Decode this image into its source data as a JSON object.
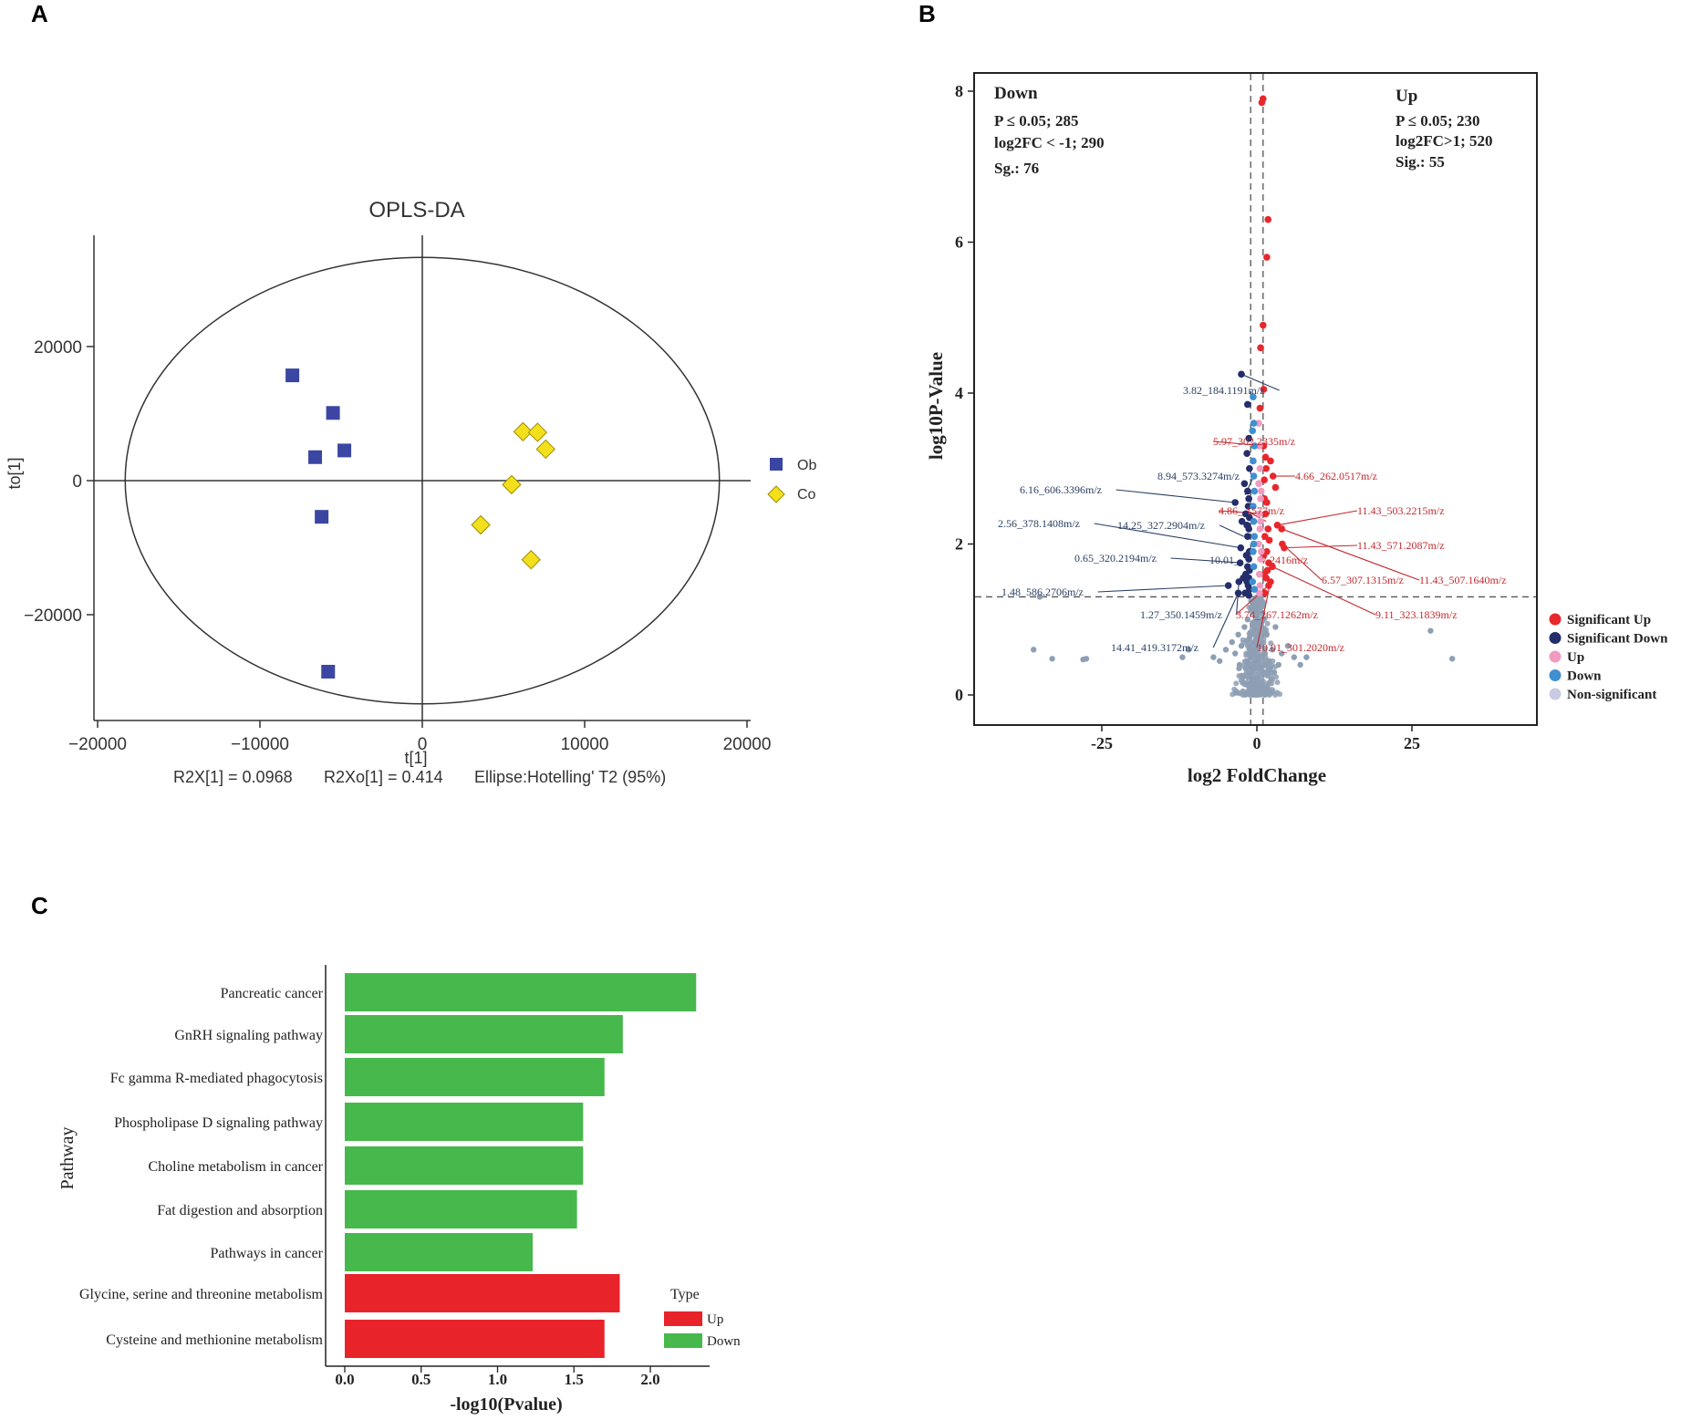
{
  "panel_labels": [
    "A",
    "B",
    "C"
  ],
  "colors": {
    "ob": "#3b46a3",
    "co": "#f3e01c",
    "sig_up": "#e8272d",
    "sig_down": "#252e6b",
    "up": "#f09bbf",
    "down": "#3f8fd1",
    "nonsig": "#8e9fb4",
    "bar_up": "#e8232a",
    "bar_down": "#47b84c",
    "label_up": "#c32a2f",
    "label_down": "#2a3f63"
  },
  "chart_data": [
    {
      "id": "A",
      "type": "scatter",
      "title": "OPLS-DA",
      "xlabel": "t[1]",
      "ylabel": "to[1]",
      "xlim": [
        -20000,
        20000
      ],
      "ylim": [
        -36000,
        36000
      ],
      "xticks": [
        -20000,
        -10000,
        0,
        10000,
        20000
      ],
      "xtick_labels": [
        "−20000",
        "−10000",
        "0",
        "10000",
        "20000"
      ],
      "yticks": [
        -20000,
        0,
        20000
      ],
      "ytick_labels": [
        "−20000",
        "0",
        "20000"
      ],
      "ellipse": {
        "rx": 18300,
        "ry": 33300
      },
      "ellipse_label": "Ellipse:Hotelling' T2 (95%)",
      "stats": [
        "R2X[1] = 0.0968",
        "R2Xo[1] = 0.414"
      ],
      "legend_position": "right",
      "series": [
        {
          "name": "Ob",
          "marker": "square",
          "points": [
            [
              -8000,
              15700
            ],
            [
              -5500,
              10100
            ],
            [
              -4800,
              4500
            ],
            [
              -6600,
              3500
            ],
            [
              -6200,
              -5400
            ],
            [
              -5800,
              -28500
            ]
          ]
        },
        {
          "name": "Co",
          "marker": "diamond",
          "points": [
            [
              6200,
              7300
            ],
            [
              7100,
              7200
            ],
            [
              7600,
              4700
            ],
            [
              5500,
              -600
            ],
            [
              3600,
              -6600
            ],
            [
              6700,
              -11800
            ]
          ]
        }
      ]
    },
    {
      "id": "B",
      "type": "scatter",
      "subtype": "volcano",
      "xlabel": "log2 FoldChange",
      "ylabel": "log10P-Value",
      "xlim": [
        -44,
        44
      ],
      "ylim": [
        -0.4,
        8.5
      ],
      "xticks": [
        -25,
        0,
        25
      ],
      "xtick_labels": [
        "-25",
        "0",
        "25"
      ],
      "yticks": [
        0,
        2,
        4,
        6,
        8
      ],
      "ytick_labels": [
        "0",
        "2",
        "4",
        "6",
        "8"
      ],
      "thresholds": {
        "x": [
          -1,
          1
        ],
        "y": 1.3
      },
      "annotation_down": {
        "title": "Down",
        "lines": [
          "P ≤ 0.05;  285",
          "log2FC < -1; 290",
          "Sg.: 76"
        ]
      },
      "annotation_up": {
        "title": "Up",
        "lines": [
          "P ≤ 0.05; 230",
          "log2FC>1; 520",
          "Sig.: 55"
        ]
      },
      "legend_position": "right",
      "legend": [
        "Significant Up",
        "Significant Down",
        "Up",
        "Down",
        "Non-significant"
      ],
      "series": [
        {
          "name": "Significant Up",
          "points": [
            [
              0.8,
              7.85
            ],
            [
              1.0,
              7.9
            ],
            [
              1.8,
              6.3
            ],
            [
              1.6,
              5.8
            ],
            [
              1.0,
              4.9
            ],
            [
              0.6,
              4.6
            ],
            [
              1.1,
              4.05
            ],
            [
              0.5,
              3.8
            ],
            [
              2.2,
              3.1
            ],
            [
              3.0,
              2.75
            ],
            [
              2.6,
              2.9
            ],
            [
              3.3,
              2.25
            ],
            [
              4.0,
              2.2
            ],
            [
              4.4,
              1.95
            ],
            [
              4.1,
              2.0
            ],
            [
              2.5,
              1.7
            ],
            [
              2.2,
              1.5
            ],
            [
              1.9,
              1.45
            ],
            [
              1.5,
              1.55
            ],
            [
              1.2,
              1.6
            ],
            [
              1.6,
              1.9
            ],
            [
              1.3,
              2.1
            ],
            [
              1.4,
              2.4
            ],
            [
              1.2,
              2.6
            ],
            [
              1.5,
              3.0
            ],
            [
              1.1,
              3.3
            ],
            [
              1.8,
              2.2
            ],
            [
              1.9,
              1.75
            ],
            [
              1.3,
              1.35
            ],
            [
              1.7,
              1.65
            ],
            [
              2.0,
              2.05
            ],
            [
              1.2,
              2.85
            ],
            [
              1.6,
              2.55
            ],
            [
              1.4,
              3.15
            ],
            [
              1.1,
              1.85
            ]
          ]
        },
        {
          "name": "Significant Down",
          "points": [
            [
              -2.5,
              4.25
            ],
            [
              -1.5,
              3.85
            ],
            [
              -1.3,
              3.4
            ],
            [
              -1.6,
              3.2
            ],
            [
              -1.2,
              3.0
            ],
            [
              -2.0,
              2.8
            ],
            [
              -1.5,
              2.7
            ],
            [
              -1.3,
              2.6
            ],
            [
              -3.5,
              2.55
            ],
            [
              -1.4,
              2.5
            ],
            [
              -1.8,
              2.4
            ],
            [
              -1.2,
              2.35
            ],
            [
              -2.4,
              2.3
            ],
            [
              -1.6,
              2.25
            ],
            [
              -1.3,
              2.2
            ],
            [
              -1.5,
              2.1
            ],
            [
              -2.6,
              1.95
            ],
            [
              -1.2,
              1.9
            ],
            [
              -1.7,
              1.85
            ],
            [
              -1.3,
              1.8
            ],
            [
              -1.5,
              1.7
            ],
            [
              -1.2,
              1.65
            ],
            [
              -2.7,
              1.75
            ],
            [
              -1.8,
              1.6
            ],
            [
              -1.3,
              1.55
            ],
            [
              -2.2,
              1.55
            ],
            [
              -1.6,
              1.5
            ],
            [
              -2.9,
              1.5
            ],
            [
              -1.4,
              1.45
            ],
            [
              -1.2,
              1.4
            ],
            [
              -4.6,
              1.45
            ],
            [
              -1.9,
              1.35
            ],
            [
              -1.3,
              1.32
            ],
            [
              -3.0,
              1.35
            ]
          ]
        },
        {
          "name": "Up",
          "points": [
            [
              0.4,
              3.3
            ],
            [
              0.5,
              3.0
            ],
            [
              0.3,
              2.8
            ],
            [
              0.6,
              2.6
            ],
            [
              0.4,
              2.4
            ],
            [
              0.5,
              2.2
            ],
            [
              0.3,
              2.0
            ],
            [
              0.6,
              1.8
            ],
            [
              0.4,
              1.6
            ],
            [
              0.5,
              1.45
            ],
            [
              0.3,
              3.6
            ],
            [
              0.7,
              1.9
            ],
            [
              0.6,
              2.3
            ],
            [
              0.4,
              1.35
            ],
            [
              0.7,
              2.7
            ]
          ]
        },
        {
          "name": "Down",
          "points": [
            [
              -0.6,
              3.95
            ],
            [
              -0.5,
              3.6
            ],
            [
              -0.7,
              3.5
            ],
            [
              -0.4,
              3.3
            ],
            [
              -0.6,
              3.1
            ],
            [
              -0.5,
              2.9
            ],
            [
              -0.4,
              2.7
            ],
            [
              -0.6,
              2.5
            ],
            [
              -0.5,
              2.3
            ],
            [
              -0.4,
              2.1
            ],
            [
              -0.6,
              1.9
            ],
            [
              -0.5,
              1.7
            ],
            [
              -0.7,
              1.5
            ],
            [
              -0.4,
              1.4
            ],
            [
              -0.5,
              2.0
            ]
          ]
        },
        {
          "name": "Non-significant",
          "points": [
            [
              -36,
              0.6
            ],
            [
              -33,
              0.48
            ],
            [
              -28,
              0.47
            ],
            [
              -27.5,
              0.48
            ],
            [
              -35,
              1.3
            ],
            [
              -11,
              0.6
            ],
            [
              -12,
              0.5
            ],
            [
              -7,
              0.5
            ],
            [
              -6,
              0.45
            ],
            [
              -5,
              0.6
            ],
            [
              -4,
              0.7
            ],
            [
              -3.5,
              0.55
            ],
            [
              -3,
              0.8
            ],
            [
              -2.5,
              0.65
            ],
            [
              -2,
              0.9
            ],
            [
              -1.5,
              1.0
            ],
            [
              -1.2,
              0.75
            ],
            [
              -1,
              0.5
            ],
            [
              -0.8,
              0.3
            ],
            [
              -0.6,
              0.6
            ],
            [
              -0.4,
              0.2
            ],
            [
              -0.2,
              0.8
            ],
            [
              0,
              0.1
            ],
            [
              0.2,
              0.5
            ],
            [
              0.4,
              0.9
            ],
            [
              0.6,
              0.35
            ],
            [
              0.8,
              0.7
            ],
            [
              1,
              1.0
            ],
            [
              1.3,
              0.55
            ],
            [
              1.6,
              0.8
            ],
            [
              2,
              0.45
            ],
            [
              2.5,
              0.6
            ],
            [
              3,
              0.9
            ],
            [
              3.5,
              0.4
            ],
            [
              4,
              0.55
            ],
            [
              5,
              0.65
            ],
            [
              6,
              0.5
            ],
            [
              7,
              0.4
            ],
            [
              8,
              0.5
            ],
            [
              28,
              0.85
            ],
            [
              31.5,
              0.48
            ],
            [
              -1.8,
              0.35
            ],
            [
              1.8,
              0.3
            ],
            [
              -0.9,
              1.15
            ],
            [
              0.9,
              1.2
            ],
            [
              -1.1,
              0.15
            ],
            [
              1.1,
              0.1
            ],
            [
              -0.3,
              0.05
            ],
            [
              0.3,
              0.02
            ],
            [
              -2.2,
              0.25
            ],
            [
              2.3,
              0.2
            ],
            [
              -0.5,
              1.25
            ],
            [
              0.5,
              1.2
            ],
            [
              -1.4,
              0.45
            ],
            [
              1.4,
              0.4
            ],
            [
              -0.7,
              0.95
            ],
            [
              0.7,
              0.95
            ],
            [
              -2.8,
              0.4
            ],
            [
              2.8,
              0.3
            ],
            [
              -0.1,
              0.4
            ]
          ]
        }
      ],
      "annotations_down": [
        {
          "text": "3.82_184.1191m/z",
          "x": -2.5,
          "y": 4.25
        },
        {
          "text": "8.94_573.3274m/z",
          "x": -1.9,
          "y": 2.65
        },
        {
          "text": "6.16_606.3396m/z",
          "x": -3.5,
          "y": 2.55
        },
        {
          "text": "2.56_378.1408m/z",
          "x": -2.6,
          "y": 1.95
        },
        {
          "text": "14.25_327.2904m/z",
          "x": -2.1,
          "y": 2.1
        },
        {
          "text": "0.65_320.2194m/z",
          "x": -2.4,
          "y": 1.75
        },
        {
          "text": "10.01_",
          "x": -1.8,
          "y": 1.8
        },
        {
          "text": "1.48_586.2706m/z",
          "x": -4.6,
          "y": 1.45
        },
        {
          "text": "1.27_350.1459m/z",
          "x": -2.9,
          "y": 1.5
        },
        {
          "text": "14.41_419.3172m/z",
          "x": -3.0,
          "y": 1.35
        }
      ],
      "annotations_up": [
        {
          "text": "5.97_302.2335m/z",
          "x": 1.2,
          "y": 3.3
        },
        {
          "text": "4.66_262.0517m/z",
          "x": 2.6,
          "y": 2.9
        },
        {
          "text": "4.86_",
          "x": 1.4,
          "y": 2.4
        },
        {
          "text": "1577m/z",
          "x": 1.5,
          "y": 2.3
        },
        {
          "text": "11.43_503.2215m/z",
          "x": 3.3,
          "y": 2.25
        },
        {
          "text": "11.43_571.2087m/z",
          "x": 4.4,
          "y": 1.95
        },
        {
          "text": "7.2416m/z",
          "x": 1.2,
          "y": 1.75
        },
        {
          "text": "6.57_307.1315m/z",
          "x": 4.1,
          "y": 2.0
        },
        {
          "text": "11.43_507.1640m/z",
          "x": 4.0,
          "y": 2.2
        },
        {
          "text": "9.11_323.1839m/z",
          "x": 2.5,
          "y": 1.7
        },
        {
          "text": "3.74_267.1262m/z",
          "x": 1.9,
          "y": 1.45
        },
        {
          "text": "10.01_301.2020m/z",
          "x": 2.2,
          "y": 1.5
        }
      ]
    },
    {
      "id": "C",
      "type": "bar",
      "orientation": "horizontal",
      "xlabel": "-log10(Pvalue)",
      "ylabel": "Pathway",
      "xlim": [
        0,
        2.4
      ],
      "xticks": [
        0,
        0.5,
        1,
        1.5,
        2
      ],
      "xtick_labels": [
        "0.0",
        "0.5",
        "1.0",
        "1.5",
        "2.0"
      ],
      "categories": [
        "Pancreatic cancer",
        "GnRH signaling pathway",
        "Fc gamma R-mediated phagocytosis",
        "Phospholipase D signaling pathway",
        "Choline metabolism in cancer",
        "Fat digestion and absorption",
        "Pathways in cancer",
        "Glycine, serine and threonine metabolism",
        "Cysteine and methionine metabolism"
      ],
      "values": [
        2.3,
        1.82,
        1.7,
        1.56,
        1.56,
        1.52,
        1.23,
        1.8,
        1.7
      ],
      "types": [
        "Down",
        "Down",
        "Down",
        "Down",
        "Down",
        "Down",
        "Down",
        "Up",
        "Up"
      ],
      "legend_title": "Type",
      "legend": [
        "Up",
        "Down"
      ],
      "legend_position": "right"
    }
  ]
}
